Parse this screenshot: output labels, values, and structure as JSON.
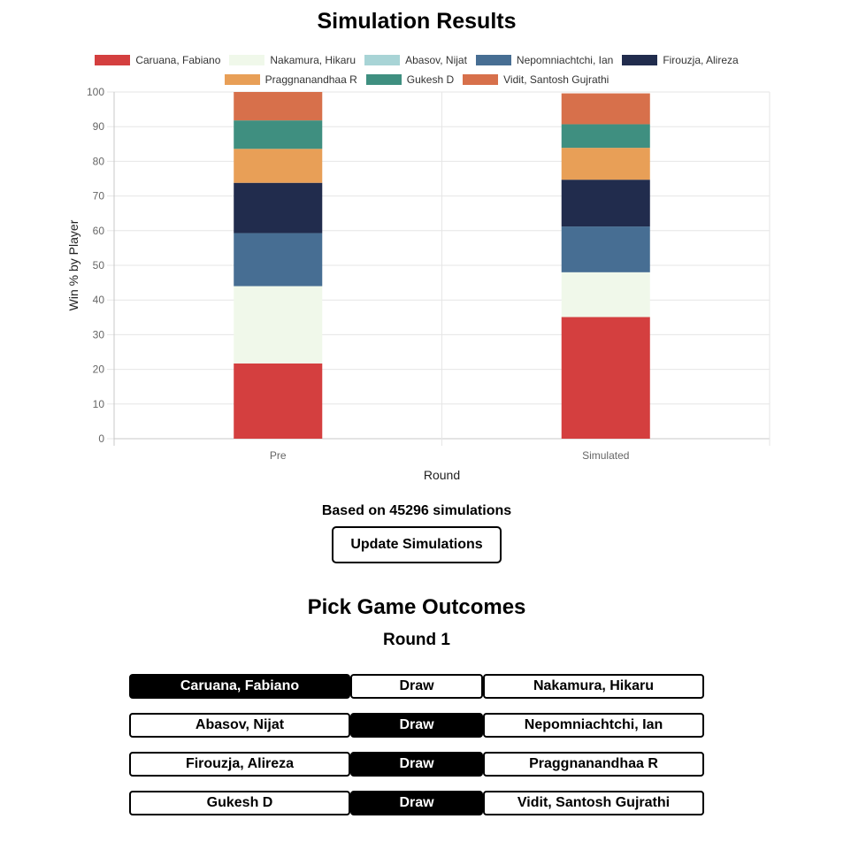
{
  "simulation_title": "Simulation Results",
  "chart_data": {
    "type": "bar",
    "stacked": true,
    "categories": [
      "Pre",
      "Simulated"
    ],
    "xlabel": "Round",
    "ylabel": "Win % by Player",
    "ylim": [
      0,
      100
    ],
    "yticks": [
      0,
      10,
      20,
      30,
      40,
      50,
      60,
      70,
      80,
      90,
      100
    ],
    "grid": true,
    "legend": "top",
    "series": [
      {
        "name": "Caruana, Fabiano",
        "color": "#d43f3f",
        "values": [
          21.7,
          35.1
        ]
      },
      {
        "name": "Nakamura, Hikaru",
        "color": "#f0f8ea",
        "values": [
          22.3,
          12.9
        ]
      },
      {
        "name": "Abasov, Nijat",
        "color": "#a8d4d6",
        "values": [
          0.0,
          0.0
        ]
      },
      {
        "name": "Nepomniachtchi, Ian",
        "color": "#476e93",
        "values": [
          15.3,
          13.2
        ]
      },
      {
        "name": "Firouzja, Alireza",
        "color": "#212c4d",
        "values": [
          14.5,
          13.5
        ]
      },
      {
        "name": "Praggnanandhaa R",
        "color": "#e89f57",
        "values": [
          9.8,
          9.2
        ]
      },
      {
        "name": "Gukesh D",
        "color": "#3f8f80",
        "values": [
          8.2,
          6.8
        ]
      },
      {
        "name": "Vidit, Santosh Gujrathi",
        "color": "#d7704b",
        "values": [
          8.2,
          8.9
        ]
      }
    ]
  },
  "simulation_count_text": "Based on 45296 simulations",
  "update_button_label": "Update Simulations",
  "pick_title": "Pick Game Outcomes",
  "round_title": "Round 1",
  "games": [
    {
      "white": "Caruana, Fabiano",
      "draw": "Draw",
      "black": "Nakamura, Hikaru",
      "selected": "white"
    },
    {
      "white": "Abasov, Nijat",
      "draw": "Draw",
      "black": "Nepomniachtchi, Ian",
      "selected": "draw"
    },
    {
      "white": "Firouzja, Alireza",
      "draw": "Draw",
      "black": "Praggnanandhaa R",
      "selected": "draw"
    },
    {
      "white": "Gukesh D",
      "draw": "Draw",
      "black": "Vidit, Santosh Gujrathi",
      "selected": "draw"
    }
  ]
}
